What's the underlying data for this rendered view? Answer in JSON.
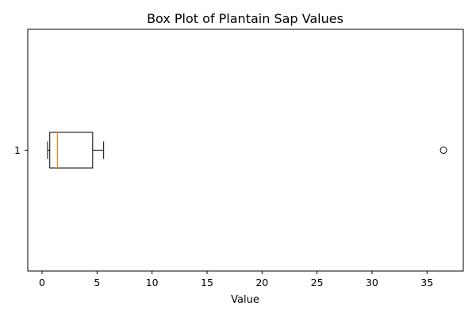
{
  "chart_data": {
    "type": "box",
    "orientation": "horizontal",
    "title": "Box Plot of Plantain Sap Values",
    "xlabel": "Value",
    "ylabel": "",
    "xlim": [
      -1.3,
      38.3
    ],
    "x_ticks": [
      0,
      5,
      10,
      15,
      20,
      25,
      30,
      35
    ],
    "y_ticks": [
      "1"
    ],
    "boxes": [
      {
        "category": "1",
        "whisker_low": 0.5,
        "q1": 0.7,
        "median": 1.4,
        "q3": 4.6,
        "whisker_high": 5.6,
        "outliers": [
          36.5
        ]
      }
    ],
    "colors": {
      "box": "#000000",
      "median": "#ff7f0e",
      "outlier_edge": "#000000"
    }
  }
}
